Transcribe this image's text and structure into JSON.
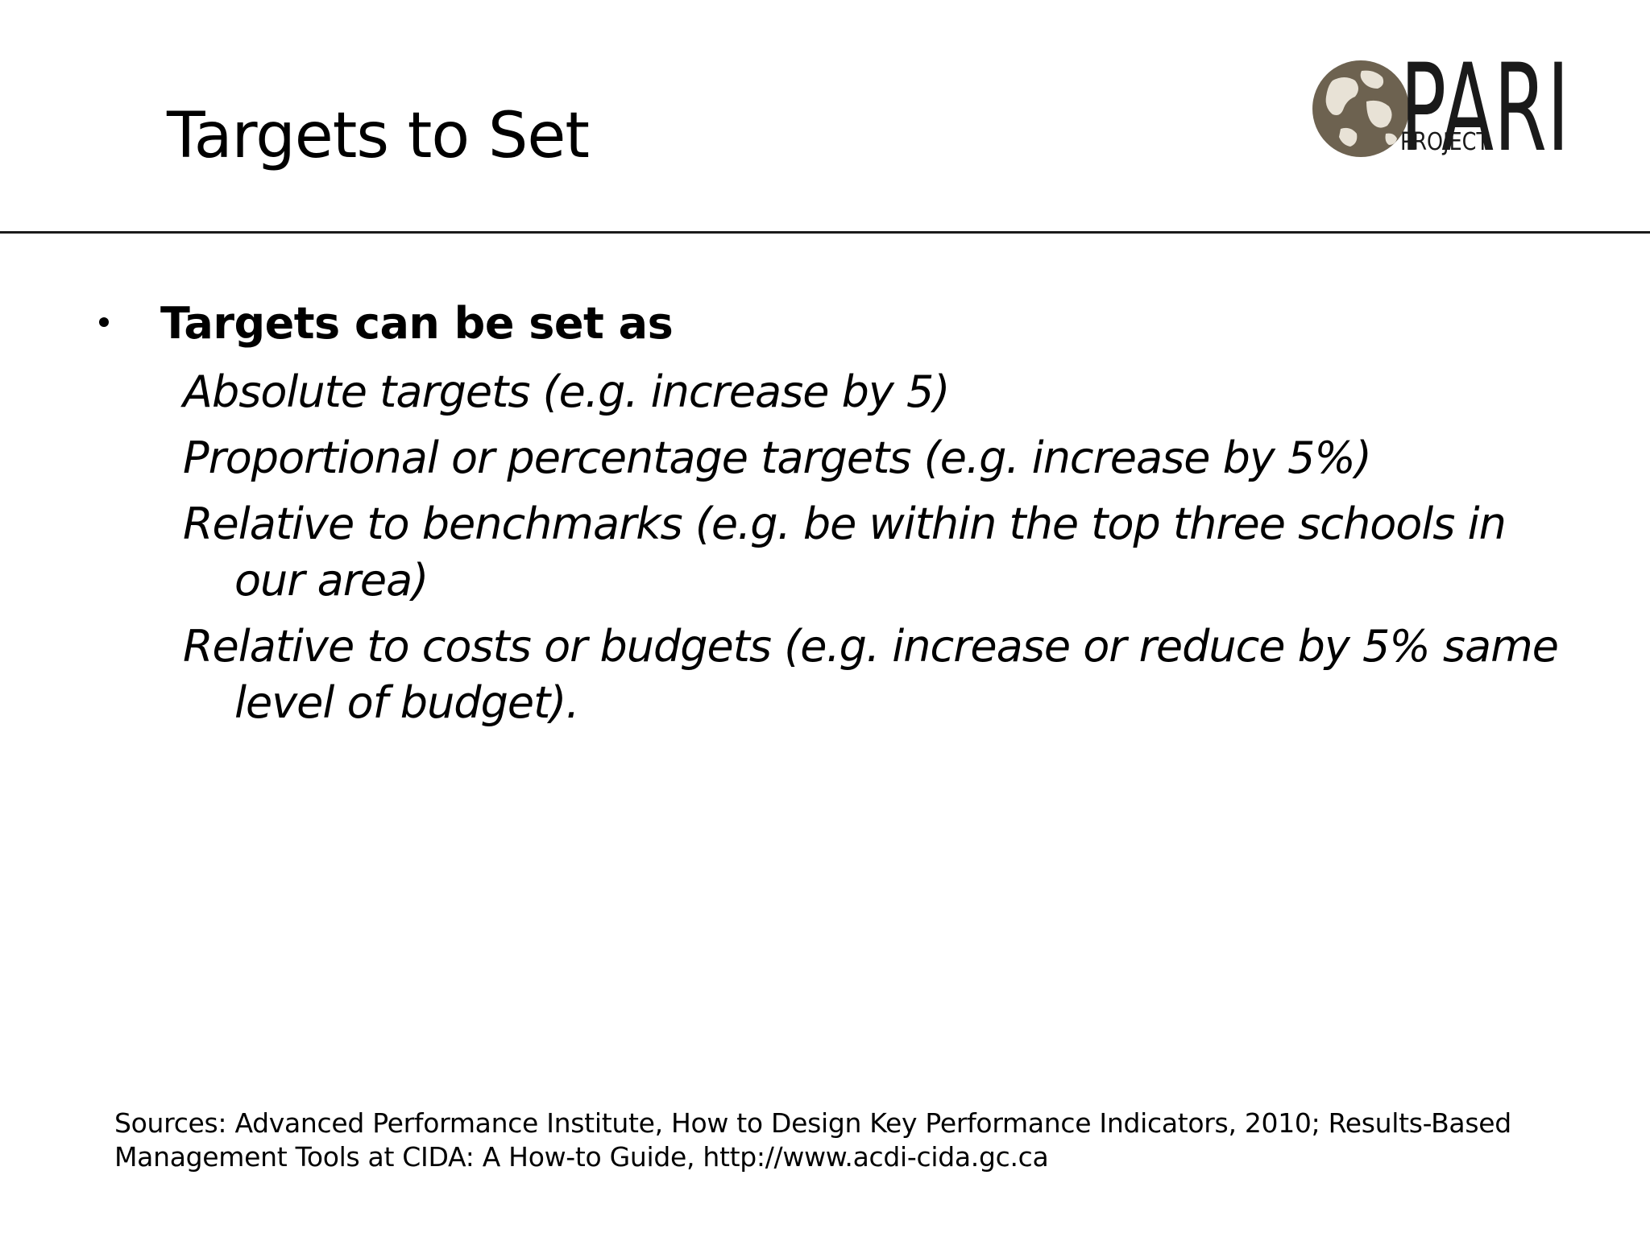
{
  "slide": {
    "title": "Targets to Set",
    "logo": {
      "icon": "globe-icon",
      "wordmark_large": "PARI",
      "wordmark_small": "PROJECT",
      "color": "#5b4f3a"
    },
    "bullet": {
      "heading": "Targets can be set as",
      "items": [
        "Absolute targets (e.g. increase by 5)",
        "Proportional or percentage targets (e.g. increase by 5%)",
        "Relative to benchmarks (e.g. be within the top three schools in our area)",
        "Relative to costs or budgets (e.g. increase or reduce by 5% same level of budget)."
      ]
    },
    "sources": "Sources: Advanced Performance Institute, How to Design Key Performance Indicators, 2010; Results-Based Management Tools at CIDA: A How-to Guide, http://www.acdi-cida.gc.ca"
  }
}
